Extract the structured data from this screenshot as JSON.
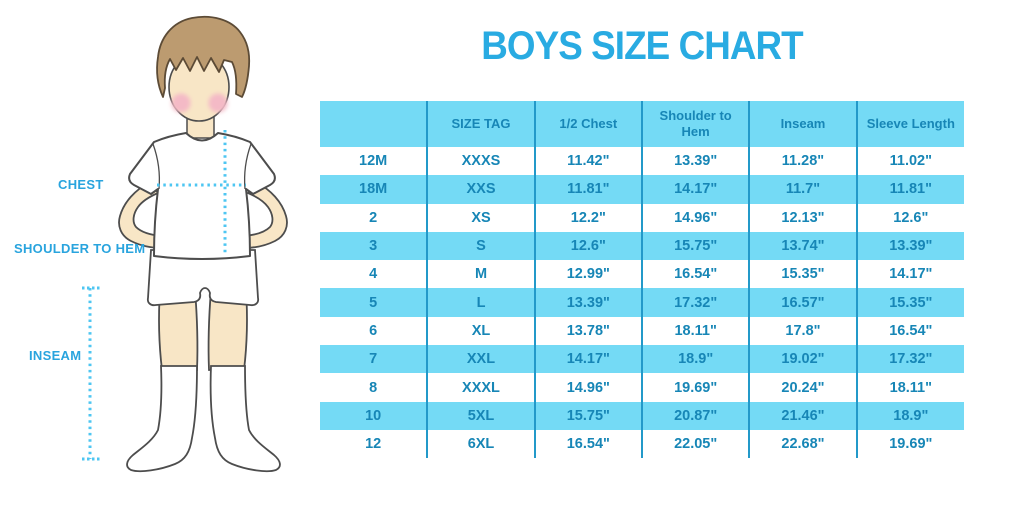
{
  "title": "BOYS SIZE CHART",
  "figure": {
    "illustration": "boy front view wearing white t-shirt, white shorts and white knee socks",
    "labels": {
      "chest": "CHEST",
      "shoulder_to_hem": "SHOULDER TO HEM",
      "inseam": "INSEAM"
    }
  },
  "chart_data": {
    "type": "table",
    "title": "BOYS SIZE CHART",
    "columns": [
      "",
      "SIZE TAG",
      "1/2 Chest",
      "Shoulder to Hem",
      "Inseam",
      "Sleeve Length"
    ],
    "rows": [
      [
        "12M",
        "XXXS",
        "11.42\"",
        "13.39\"",
        "11.28\"",
        "11.02\""
      ],
      [
        "18M",
        "XXS",
        "11.81\"",
        "14.17\"",
        "11.7\"",
        "11.81\""
      ],
      [
        "2",
        "XS",
        "12.2\"",
        "14.96\"",
        "12.13\"",
        "12.6\""
      ],
      [
        "3",
        "S",
        "12.6\"",
        "15.75\"",
        "13.74\"",
        "13.39\""
      ],
      [
        "4",
        "M",
        "12.99\"",
        "16.54\"",
        "15.35\"",
        "14.17\""
      ],
      [
        "5",
        "L",
        "13.39\"",
        "17.32\"",
        "16.57\"",
        "15.35\""
      ],
      [
        "6",
        "XL",
        "13.78\"",
        "18.11\"",
        "17.8\"",
        "16.54\""
      ],
      [
        "7",
        "XXL",
        "14.17\"",
        "18.9\"",
        "19.02\"",
        "17.32\""
      ],
      [
        "8",
        "XXXL",
        "14.96\"",
        "19.69\"",
        "20.24\"",
        "18.11\""
      ],
      [
        "10",
        "5XL",
        "15.75\"",
        "20.87\"",
        "21.46\"",
        "18.9\""
      ],
      [
        "12",
        "6XL",
        "16.54\"",
        "22.05\"",
        "22.68\"",
        "19.69\""
      ]
    ],
    "layout": "header row and every second data row shaded light blue; blue vertical column separators; units in inches"
  },
  "colors": {
    "title_blue": "#29ABE2",
    "label_blue": "#29A4DE",
    "stripe_blue": "#74DAF5",
    "border_blue": "#2399C9",
    "table_text_blue": "#1786B6",
    "dotted_blue": "#4EC6F2",
    "skin": "#F8E6C6",
    "hair": "#BC9B70",
    "hair_outline": "#5C4B36",
    "figure_outline": "#4D4D4D",
    "cheek": "#F4BAC6"
  }
}
